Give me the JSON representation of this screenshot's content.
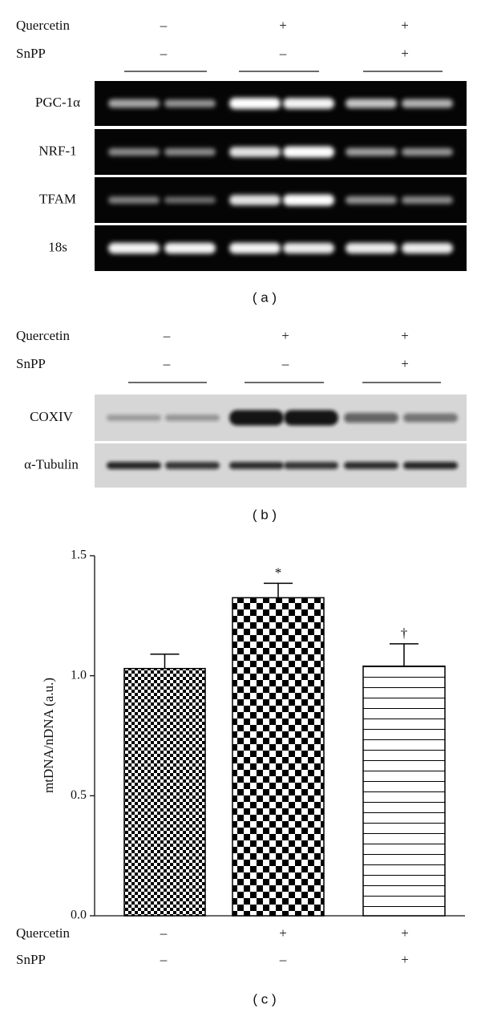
{
  "panel_a": {
    "treatments": [
      {
        "name": "Quercetin",
        "values": [
          "–",
          "+",
          "+"
        ]
      },
      {
        "name": "SnPP",
        "values": [
          "–",
          "–",
          "+"
        ]
      }
    ],
    "rows": [
      "PGC-1α",
      "NRF-1",
      "TFAM",
      "18s"
    ],
    "caption": "( a )"
  },
  "panel_b": {
    "treatments": [
      {
        "name": "Quercetin",
        "values": [
          "–",
          "+",
          "+"
        ]
      },
      {
        "name": "SnPP",
        "values": [
          "–",
          "–",
          "+"
        ]
      }
    ],
    "rows": [
      "COXIV",
      "α-Tubulin"
    ],
    "caption": "( b )"
  },
  "chart_data": {
    "type": "bar",
    "ylabel": "mtDNA/nDNA (a.u.)",
    "values": [
      1.03,
      1.325,
      1.04
    ],
    "errors": [
      0.06,
      0.06,
      0.093
    ],
    "annotations": [
      null,
      "*",
      "†"
    ],
    "ylim": [
      0,
      1.5
    ],
    "yticks": [
      {
        "value": 0,
        "label": "0.0"
      },
      0.5,
      {
        "value": 1,
        "label": "1.0"
      },
      1.5
    ],
    "treatments": [
      {
        "name": "Quercetin",
        "values": [
          "–",
          "+",
          "+"
        ]
      },
      {
        "name": "SnPP",
        "values": [
          "–",
          "–",
          "+"
        ]
      }
    ],
    "caption": "( c )"
  }
}
